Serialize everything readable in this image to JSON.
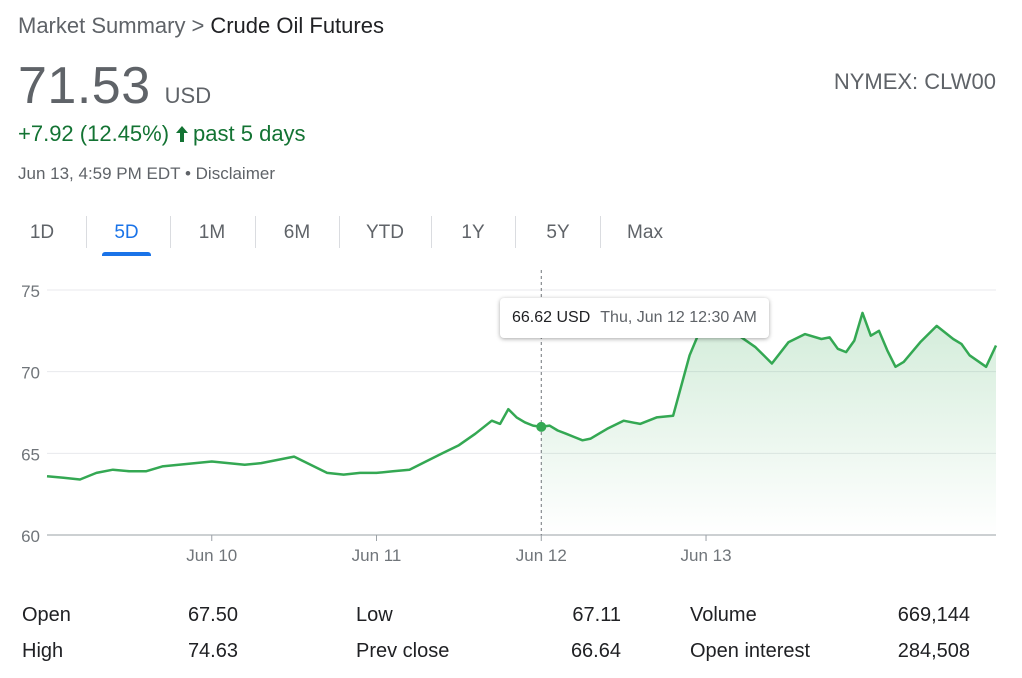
{
  "breadcrumb": {
    "root": "Market Summary",
    "separator": ">",
    "current": "Crude Oil Futures"
  },
  "quote": {
    "price": "71.53",
    "currency": "USD",
    "exchange": "NYMEX: CLW00",
    "change": "+7.92 (12.45%)",
    "change_icon": "arrow-up-icon",
    "period": "past 5 days",
    "timestamp": "Jun 13, 4:59 PM EDT",
    "dot": "•",
    "disclaimer": "Disclaimer",
    "positive_color": "#137333",
    "line_color": "#34a853"
  },
  "tabs": [
    {
      "label": "1D",
      "active": false
    },
    {
      "label": "5D",
      "active": true
    },
    {
      "label": "1M",
      "active": false
    },
    {
      "label": "6M",
      "active": false
    },
    {
      "label": "YTD",
      "active": false
    },
    {
      "label": "1Y",
      "active": false
    },
    {
      "label": "5Y",
      "active": false
    },
    {
      "label": "Max",
      "active": false
    }
  ],
  "chart_data": {
    "type": "area",
    "title": "",
    "xlabel": "",
    "ylabel": "",
    "ylim": [
      60,
      75
    ],
    "y_ticks": [
      "60",
      "65",
      "70",
      "75"
    ],
    "x_ticks": [
      "Jun 10",
      "Jun 11",
      "Jun 12",
      "Jun 13"
    ],
    "x_range_days": [
      -1.0,
      4.76
    ],
    "grid": true,
    "series": [
      {
        "x": [
          -1.0,
          -0.9,
          -0.8,
          -0.7,
          -0.6,
          -0.5,
          -0.4,
          -0.3,
          -0.2,
          -0.1,
          0.0,
          0.1,
          0.2,
          0.3,
          0.4,
          0.5,
          0.6,
          0.7,
          0.8,
          0.9,
          1.0,
          1.1,
          1.2,
          1.3,
          1.4,
          1.5,
          1.6,
          1.7,
          1.75,
          1.8,
          1.85,
          1.9,
          1.95,
          2.0,
          2.05,
          2.1,
          2.15,
          2.2,
          2.25,
          2.3,
          2.35,
          2.4,
          2.5,
          2.6,
          2.7,
          2.8,
          2.9,
          3.0,
          3.1,
          3.2,
          3.3,
          3.4,
          3.5,
          3.6,
          3.7,
          3.75,
          3.8,
          3.85,
          3.9,
          3.95,
          4.0,
          4.05,
          4.1,
          4.15,
          4.2,
          4.3,
          4.4,
          4.5,
          4.55,
          4.6,
          4.7,
          4.76
        ],
        "values": [
          63.6,
          63.5,
          63.4,
          63.8,
          64.0,
          63.9,
          63.9,
          64.2,
          64.3,
          64.4,
          64.5,
          64.4,
          64.3,
          64.4,
          64.6,
          64.8,
          64.3,
          63.8,
          63.7,
          63.8,
          63.8,
          63.9,
          64.0,
          64.5,
          65.0,
          65.5,
          66.2,
          67.0,
          66.8,
          67.7,
          67.2,
          66.9,
          66.7,
          66.62,
          66.7,
          66.4,
          66.2,
          66.0,
          65.8,
          65.9,
          66.2,
          66.5,
          67.0,
          66.8,
          67.2,
          67.3,
          71.0,
          73.4,
          72.7,
          72.2,
          71.5,
          70.5,
          71.8,
          72.3,
          72.0,
          72.1,
          71.4,
          71.2,
          71.9,
          73.6,
          72.2,
          72.5,
          71.3,
          70.3,
          70.6,
          71.8,
          72.8,
          72.0,
          71.7,
          71.0,
          70.3,
          71.6
        ]
      }
    ],
    "marker": {
      "x": 2.0,
      "value": 66.62
    }
  },
  "tooltip": {
    "price": "66.62 USD",
    "time": "Thu, Jun 12 12:30 AM"
  },
  "stats": [
    {
      "label": "Open",
      "value": "67.50"
    },
    {
      "label": "High",
      "value": "74.63"
    },
    {
      "label": "Low",
      "value": "67.11"
    },
    {
      "label": "Prev close",
      "value": "66.64"
    },
    {
      "label": "Volume",
      "value": "669,144"
    },
    {
      "label": "Open interest",
      "value": "284,508"
    }
  ]
}
